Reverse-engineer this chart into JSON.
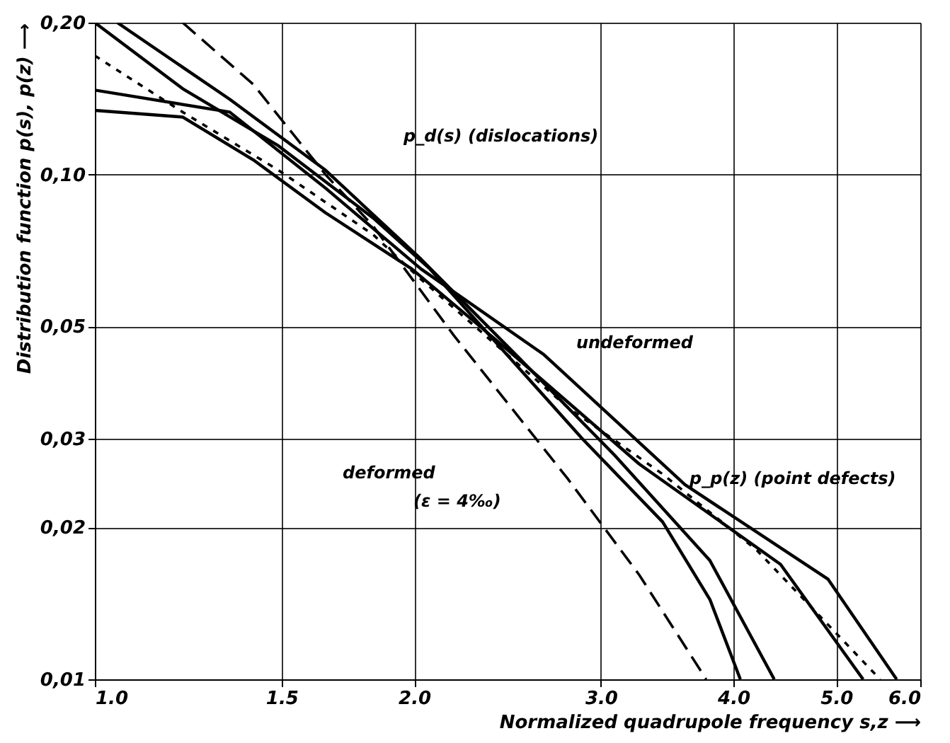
{
  "chart_data": {
    "type": "line",
    "xlabel": "Normalized quadrupole frequency  s,z  ⟶",
    "ylabel": "Distribution function  p(s), p(z)  ⟶",
    "log": "xy",
    "grid": true,
    "xlim": [
      1.0,
      6.0
    ],
    "ylim": [
      0.01,
      0.2
    ],
    "xticks": [
      {
        "value": 1.0,
        "label": "1.0"
      },
      {
        "value": 1.5,
        "label": "1.5"
      },
      {
        "value": 2.0,
        "label": "2.0"
      },
      {
        "value": 3.0,
        "label": "3.0"
      },
      {
        "value": 4.0,
        "label": "4.0"
      },
      {
        "value": 5.0,
        "label": "5.0"
      },
      {
        "value": 6.0,
        "label": "6.0"
      }
    ],
    "yticks": [
      {
        "value": 0.01,
        "label": "0,01"
      },
      {
        "value": 0.02,
        "label": "0,02"
      },
      {
        "value": 0.03,
        "label": "0,03"
      },
      {
        "value": 0.05,
        "label": "0,05"
      },
      {
        "value": 0.1,
        "label": "0,10"
      },
      {
        "value": 0.2,
        "label": "0,20"
      }
    ],
    "series": [
      {
        "color": "#000000",
        "line_style": "solid",
        "x": [
          1.0,
          1.34,
          1.65,
          2.03,
          2.65,
          3.6,
          4.91,
          5.7
        ],
        "values": [
          0.147,
          0.133,
          0.094,
          0.065,
          0.044,
          0.0243,
          0.0158,
          0.01
        ]
      },
      {
        "color": "#000000",
        "line_style": "solid",
        "x": [
          1.0,
          1.21,
          1.41,
          1.65,
          1.99,
          2.39,
          3.26,
          4.43,
          5.3
        ],
        "values": [
          0.134,
          0.13,
          0.107,
          0.084,
          0.065,
          0.047,
          0.0267,
          0.0169,
          0.01
        ]
      },
      {
        "color": "#000000",
        "line_style": "solid",
        "x": [
          1.05,
          1.34,
          1.65,
          2.03,
          2.52,
          3.09,
          3.8,
          4.37
        ],
        "values": [
          0.2,
          0.141,
          0.102,
          0.068,
          0.043,
          0.0278,
          0.0172,
          0.01
        ]
      },
      {
        "color": "#000000",
        "line_style": "solid",
        "x": [
          1.0,
          1.21,
          1.49,
          1.83,
          2.07,
          2.88,
          3.43,
          3.8,
          4.06
        ],
        "values": [
          0.2,
          0.148,
          0.114,
          0.082,
          0.065,
          0.03,
          0.0205,
          0.0144,
          0.01
        ]
      },
      {
        "color": "#000000",
        "line_style": "dashed",
        "x": [
          1.21,
          1.41,
          1.65,
          1.83,
          2.18,
          2.79,
          3.26,
          3.77
        ],
        "values": [
          0.2,
          0.151,
          0.1,
          0.079,
          0.048,
          0.025,
          0.0161,
          0.01
        ]
      },
      {
        "color": "#000000",
        "line_style": "dotted",
        "x": [
          1.0,
          1.21,
          1.49,
          1.83,
          2.03,
          2.79,
          3.43,
          4.21,
          5.5
        ],
        "values": [
          0.172,
          0.133,
          0.102,
          0.076,
          0.062,
          0.0346,
          0.0255,
          0.018,
          0.01
        ]
      }
    ],
    "annotations": [
      "p_d(s) (dislocations)",
      "undeformed",
      "deformed",
      "(ε = 4‰)",
      "p_p(z) (point defects)"
    ]
  }
}
